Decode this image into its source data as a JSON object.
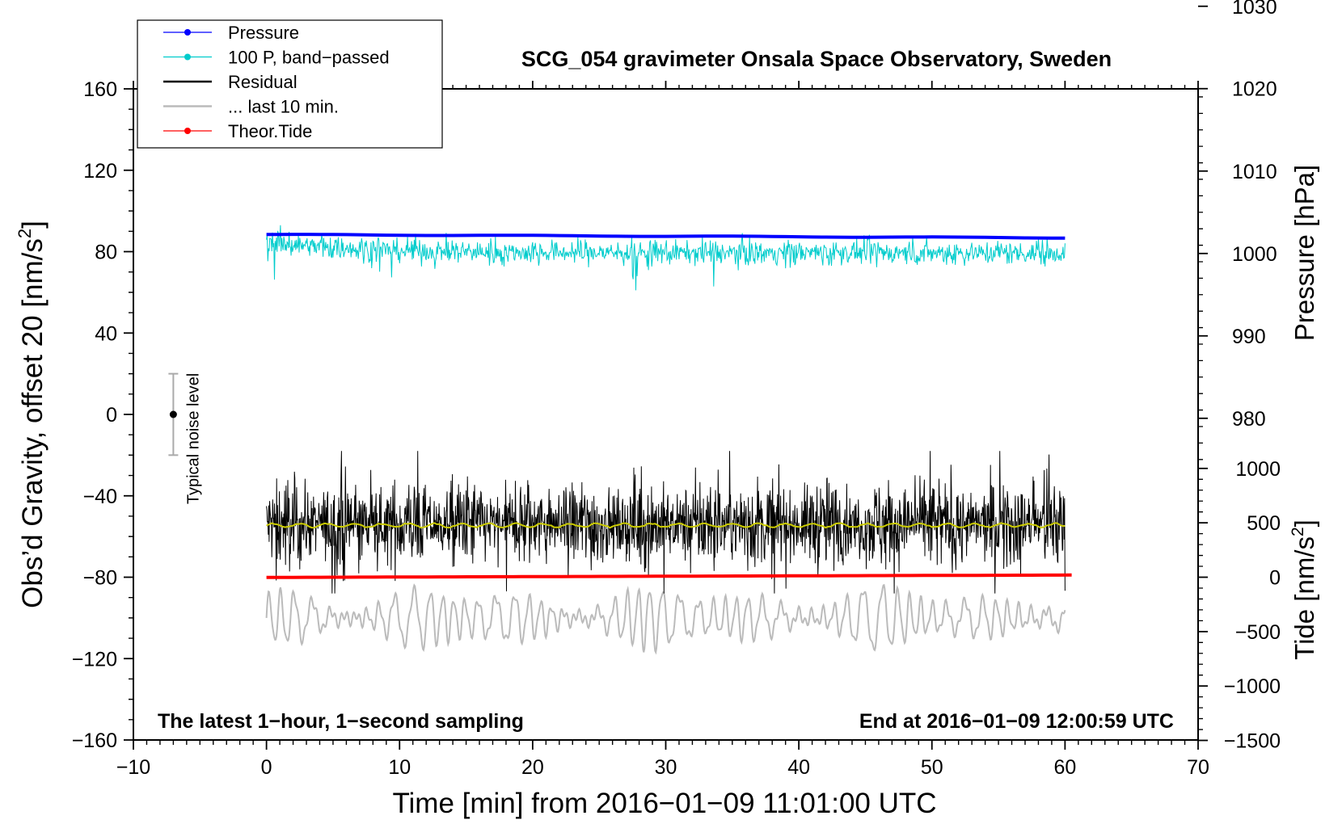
{
  "chart_data": {
    "type": "line",
    "title": "SCG_054 gravimeter Onsala Space Observatory, Sweden",
    "xlabel": "Time [min] from 2016−01−09 11:01:00 UTC",
    "ylabel": "Obs’d Gravity, offset 20 [nm/s²]",
    "xlim": [
      -10,
      70
    ],
    "ylim": [
      -160,
      160
    ],
    "x_ticks": [
      -10,
      0,
      10,
      20,
      30,
      40,
      50,
      60,
      70
    ],
    "x_tick_labels": [
      "−10",
      "0",
      "10",
      "20",
      "30",
      "40",
      "50",
      "60",
      "70"
    ],
    "y_ticks": [
      -160,
      -120,
      -80,
      -40,
      0,
      40,
      80,
      120,
      160
    ],
    "y_tick_labels": [
      "−160",
      "−120",
      "−80",
      "−40",
      "0",
      "40",
      "80",
      "120",
      "160"
    ],
    "right_axes": [
      {
        "name": "pressure",
        "label": "Pressure [hPa]",
        "range": [
          980,
          1030
        ],
        "ticks": [
          980,
          990,
          1000,
          1010,
          1020,
          1030
        ],
        "tick_labels": [
          "980",
          "990",
          "1000",
          "1010",
          "1020",
          "1030"
        ],
        "gravity_per_unit": 4.05,
        "gravity_at_1000": 79.1
      },
      {
        "name": "tide",
        "label_main": "Tide [nm/s",
        "label_sup": "2",
        "label_end": "]",
        "range": [
          -1500,
          1000
        ],
        "ticks": [
          -1500,
          -1000,
          -500,
          0,
          500,
          1000
        ],
        "tick_labels": [
          "−1500",
          "−1000",
          "−500",
          "0",
          "500",
          "1000"
        ],
        "gravity_per_unit": 0.05347,
        "gravity_at_0": -80.0
      }
    ],
    "series": [
      {
        "name": "Pressure",
        "color": "#0000ff",
        "style": "line-dot",
        "x_range": [
          0,
          60
        ],
        "start": 1002.3,
        "end": 1001.9,
        "note": "pressure axis units"
      },
      {
        "name": "100 P, band−passed",
        "color": "#00cccc",
        "style": "line-dot",
        "x_range": [
          0,
          60
        ],
        "baseline": 79.5,
        "early_offset": 6,
        "noise_amplitude": 3.5,
        "min": 61,
        "max": 93
      },
      {
        "name": "Residual",
        "color": "#000000",
        "style": "line",
        "x_range": [
          0,
          60
        ],
        "baseline": -54,
        "noise_amplitude": 9,
        "min": -88,
        "max": -18
      },
      {
        "name": "smoothed residual",
        "color": "#cccc00",
        "style": "line",
        "x_range": [
          0,
          60
        ],
        "baseline": -54.5
      },
      {
        "name": "... last 10 min.",
        "color": "#bbbbbb",
        "style": "line",
        "x_range": [
          0,
          60
        ],
        "baseline": -100,
        "amplitude": 16,
        "min": -124,
        "max": -76
      },
      {
        "name": "Theor.Tide",
        "color": "#ff0000",
        "style": "line-dot",
        "x_range": [
          0,
          60.5
        ],
        "start": -2,
        "end": 20,
        "note": "tide axis units"
      }
    ],
    "noise_marker": {
      "x": -7,
      "y": 0,
      "error": 20,
      "label": "Typical noise level"
    },
    "legend": {
      "placement": "top-left",
      "entries": [
        {
          "label": "Pressure",
          "color": "#0000ff",
          "marker": true
        },
        {
          "label": "100 P, band−passed",
          "color": "#00cccc",
          "marker": true
        },
        {
          "label": "Residual",
          "color": "#000000",
          "marker": false
        },
        {
          "label": "... last 10 min.",
          "color": "#bbbbbb",
          "marker": false
        },
        {
          "label": "Theor.Tide",
          "color": "#ff0000",
          "marker": true
        }
      ]
    },
    "annotations": {
      "bottom_left": "The latest 1−hour, 1−second sampling",
      "bottom_right": "End at 2016−01−09 12:00:59 UTC"
    }
  }
}
